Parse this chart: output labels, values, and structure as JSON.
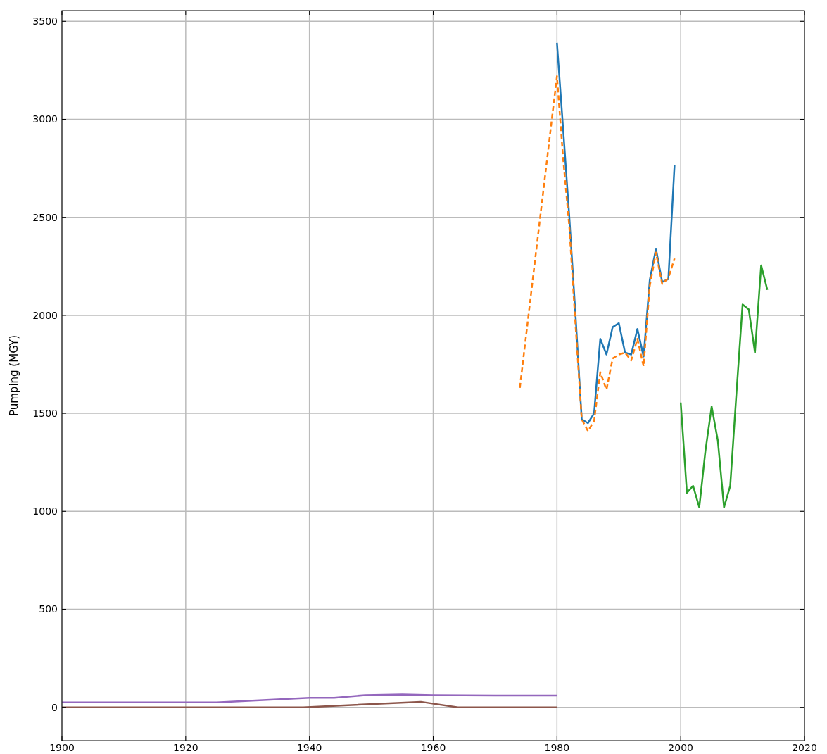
{
  "chart_data": {
    "type": "line",
    "ylabel": "Pumping (MGY)",
    "xlim": [
      1900,
      2020
    ],
    "xticks": [
      1900,
      1920,
      1940,
      1960,
      1980,
      2000,
      2020
    ],
    "ylim": [
      -170,
      3555
    ],
    "yticks": [
      0,
      500,
      1000,
      1500,
      2000,
      2500,
      3000,
      3500
    ],
    "grid": true,
    "line_style": "solid",
    "series": [
      {
        "color": "#1f77b4",
        "x": [
          1980,
          1981,
          1982,
          1983,
          1984,
          1985,
          1986,
          1987,
          1988,
          1989,
          1990,
          1991,
          1992,
          1993,
          1994,
          1995,
          1996,
          1997,
          1998,
          1999
        ],
        "values": [
          3390,
          2950,
          2500,
          2000,
          1470,
          1450,
          1500,
          1880,
          1800,
          1940,
          1960,
          1810,
          1800,
          1930,
          1790,
          2180,
          2340,
          2170,
          2185,
          2765
        ]
      },
      {
        "color": "#ff7f0e",
        "line_style": "dashed",
        "x": [
          1974,
          1980,
          1981,
          1982,
          1983,
          1984,
          1985,
          1986,
          1987,
          1988,
          1989,
          1990,
          1991,
          1992,
          1993,
          1994,
          1995,
          1996,
          1997,
          1998,
          1999
        ],
        "values": [
          1630,
          3220,
          2800,
          2450,
          1950,
          1470,
          1410,
          1460,
          1710,
          1620,
          1780,
          1800,
          1810,
          1770,
          1880,
          1740,
          2150,
          2320,
          2160,
          2190,
          2290
        ]
      },
      {
        "color": "#2ca02c",
        "x": [
          2000,
          2001,
          2002,
          2003,
          2004,
          2005,
          2006,
          2007,
          2008,
          2009,
          2010,
          2011,
          2012,
          2013,
          2014
        ],
        "values": [
          1555,
          1095,
          1130,
          1020,
          1310,
          1535,
          1360,
          1020,
          1130,
          1600,
          2055,
          2030,
          1810,
          2255,
          2130
        ]
      },
      {
        "color": "#9467bd",
        "x": [
          1900,
          1925,
          1940,
          1944,
          1949,
          1955,
          1960,
          1970,
          1980
        ],
        "values": [
          25,
          25,
          48,
          48,
          62,
          65,
          62,
          60,
          60
        ]
      },
      {
        "color": "#8c564b",
        "x": [
          1900,
          1939,
          1958,
          1964,
          1980
        ],
        "values": [
          0,
          0,
          28,
          0,
          0
        ]
      }
    ]
  }
}
